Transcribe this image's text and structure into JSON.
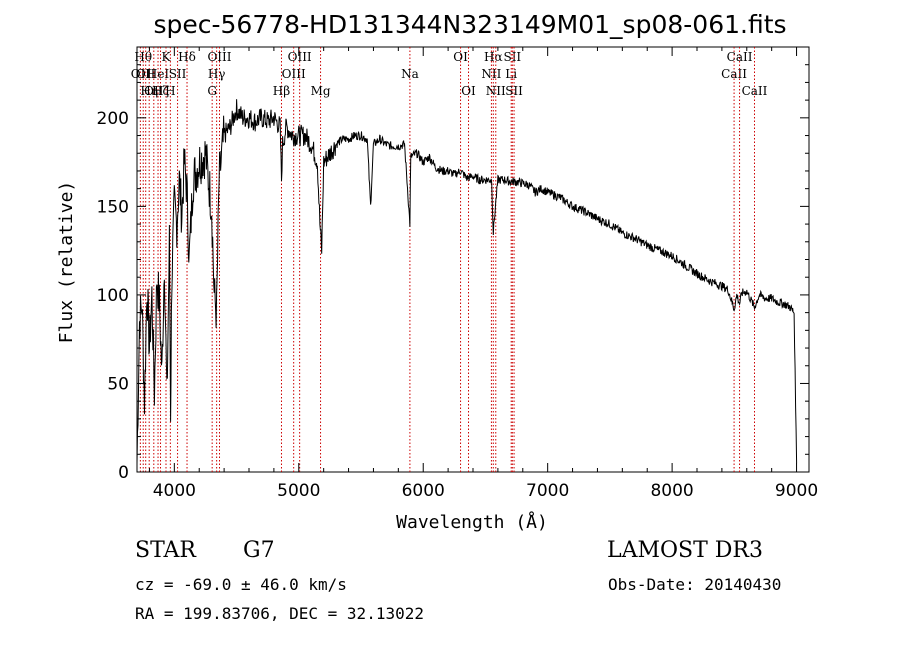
{
  "chart_data": {
    "type": "line",
    "title": "spec-56778-HD131344N323149M01_sp08-061.fits",
    "xlabel": "Wavelength (Å)",
    "ylabel": "Flux (relative)",
    "xlim": [
      3700,
      9100
    ],
    "ylim": [
      0,
      240
    ],
    "xticks": [
      4000,
      5000,
      6000,
      7000,
      8000,
      9000
    ],
    "yticks": [
      0,
      50,
      100,
      150,
      200
    ],
    "series": [
      {
        "name": "flux",
        "x": [
          3700,
          3720,
          3740,
          3760,
          3780,
          3800,
          3820,
          3840,
          3860,
          3880,
          3900,
          3920,
          3940,
          3960,
          3970,
          3980,
          4000,
          4020,
          4040,
          4060,
          4080,
          4100,
          4120,
          4150,
          4200,
          4250,
          4300,
          4320,
          4340,
          4360,
          4400,
          4450,
          4500,
          4550,
          4600,
          4650,
          4700,
          4750,
          4800,
          4850,
          4861,
          4870,
          4900,
          4950,
          5000,
          5050,
          5100,
          5150,
          5170,
          5184,
          5200,
          5250,
          5300,
          5350,
          5400,
          5450,
          5500,
          5550,
          5577,
          5600,
          5650,
          5700,
          5750,
          5800,
          5850,
          5893,
          5900,
          5950,
          6000,
          6050,
          6100,
          6150,
          6200,
          6250,
          6300,
          6350,
          6400,
          6450,
          6500,
          6550,
          6563,
          6580,
          6600,
          6650,
          6700,
          6750,
          6800,
          6850,
          6900,
          6950,
          7000,
          7100,
          7200,
          7300,
          7400,
          7500,
          7600,
          7700,
          7800,
          7900,
          8000,
          8100,
          8200,
          8300,
          8400,
          8450,
          8498,
          8520,
          8542,
          8560,
          8600,
          8662,
          8700,
          8750,
          8800,
          8850,
          8900,
          8950,
          8980,
          9000
        ],
        "values": [
          5,
          85,
          95,
          40,
          105,
          70,
          100,
          45,
          110,
          95,
          55,
          120,
          40,
          130,
          35,
          110,
          150,
          140,
          165,
          145,
          175,
          160,
          120,
          165,
          175,
          180,
          150,
          100,
          90,
          165,
          190,
          195,
          205,
          200,
          200,
          198,
          200,
          198,
          200,
          195,
          165,
          185,
          195,
          190,
          190,
          190,
          185,
          175,
          140,
          125,
          175,
          180,
          185,
          188,
          188,
          190,
          190,
          188,
          150,
          185,
          188,
          185,
          184,
          184,
          185,
          140,
          178,
          180,
          175,
          178,
          172,
          170,
          170,
          168,
          170,
          166,
          167,
          165,
          165,
          165,
          135,
          150,
          165,
          165,
          164,
          164,
          163,
          162,
          158,
          160,
          158,
          155,
          150,
          147,
          143,
          140,
          135,
          132,
          128,
          125,
          122,
          117,
          112,
          108,
          105,
          103,
          92,
          100,
          95,
          101,
          102,
          93,
          100,
          98,
          98,
          96,
          95,
          93,
          90,
          5
        ]
      }
    ],
    "line_marks": [
      {
        "wl": 3727,
        "label": "OII",
        "tier": 2
      },
      {
        "wl": 3750,
        "label": "Hθ",
        "tier": 1
      },
      {
        "wl": 3770,
        "label": "OII",
        "tier": 2
      },
      {
        "wl": 3798,
        "label": "Hη",
        "tier": 3
      },
      {
        "wl": 3835,
        "label": "OII",
        "tier": 3
      },
      {
        "wl": 3869,
        "label": "HeI",
        "tier": 2
      },
      {
        "wl": 3889,
        "label": "Hζ",
        "tier": 3
      },
      {
        "wl": 3933,
        "label": "K",
        "tier": 1
      },
      {
        "wl": 3968,
        "label": "H",
        "tier": 3
      },
      {
        "wl": 4026,
        "label": "SII",
        "tier": 2
      },
      {
        "wl": 4102,
        "label": "Hδ",
        "tier": 1
      },
      {
        "wl": 4304,
        "label": "G",
        "tier": 3
      },
      {
        "wl": 4340,
        "label": "Hγ",
        "tier": 2
      },
      {
        "wl": 4363,
        "label": "OIII",
        "tier": 1
      },
      {
        "wl": 4861,
        "label": "Hβ",
        "tier": 3
      },
      {
        "wl": 4959,
        "label": "OIII",
        "tier": 2
      },
      {
        "wl": 5007,
        "label": "OIII",
        "tier": 1
      },
      {
        "wl": 5175,
        "label": "Mg",
        "tier": 3
      },
      {
        "wl": 5893,
        "label": "Na",
        "tier": 2
      },
      {
        "wl": 6300,
        "label": "OI",
        "tier": 1
      },
      {
        "wl": 6364,
        "label": "OI",
        "tier": 3
      },
      {
        "wl": 6548,
        "label": "NII",
        "tier": 2
      },
      {
        "wl": 6563,
        "label": "Hα",
        "tier": 1
      },
      {
        "wl": 6583,
        "label": "NII",
        "tier": 3
      },
      {
        "wl": 6707,
        "label": "Li",
        "tier": 2
      },
      {
        "wl": 6716,
        "label": "SII",
        "tier": 1
      },
      {
        "wl": 6730,
        "label": "SII",
        "tier": 3
      },
      {
        "wl": 8498,
        "label": "CaII",
        "tier": 2
      },
      {
        "wl": 8542,
        "label": "CaII",
        "tier": 1
      },
      {
        "wl": 8662,
        "label": "CaII",
        "tier": 3
      }
    ]
  },
  "info": {
    "class_label": "STAR",
    "subclass_label": "G7",
    "survey_label": "LAMOST DR3",
    "cz_text": "cz = -69.0 ± 46.0 km/s",
    "obs_date_text": "Obs-Date: 20140430",
    "coords_text": "RA = 199.83706, DEC =  32.13022"
  }
}
